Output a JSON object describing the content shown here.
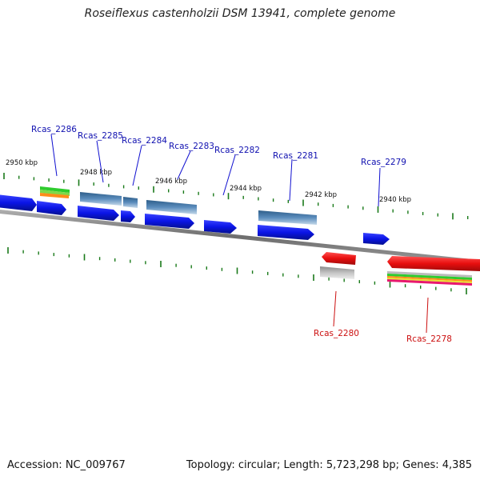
{
  "title": "Roseiflexus castenholzii DSM 13941, complete genome",
  "footer": {
    "accession": "Accession: NC_009767",
    "summary": "Topology: circular; Length: 5,723,298 bp; Genes: 4,385"
  },
  "colors": {
    "forward_gene": "#0a14e6",
    "reverse_gene": "#e80e0e",
    "forward_label": "#1010b0",
    "reverse_label": "#cc1010",
    "tick": "#1a7a1a",
    "backbone": "#808080",
    "domain_blue": "#4f80ad",
    "domain_grey": "#b4b4b4"
  },
  "ticks": {
    "labels": [
      "2950 kbp",
      "2948 kbp",
      "2946 kbp",
      "2944 kbp",
      "2942 kbp",
      "2940 kbp"
    ]
  },
  "genes_forward": [
    {
      "id": "Rcas_2286"
    },
    {
      "id": "Rcas_2285"
    },
    {
      "id": "Rcas_2284"
    },
    {
      "id": "Rcas_2283"
    },
    {
      "id": "Rcas_2282"
    },
    {
      "id": "Rcas_2281"
    },
    {
      "id": "Rcas_2279"
    }
  ],
  "genes_reverse": [
    {
      "id": "Rcas_2280"
    },
    {
      "id": "Rcas_2278"
    }
  ]
}
